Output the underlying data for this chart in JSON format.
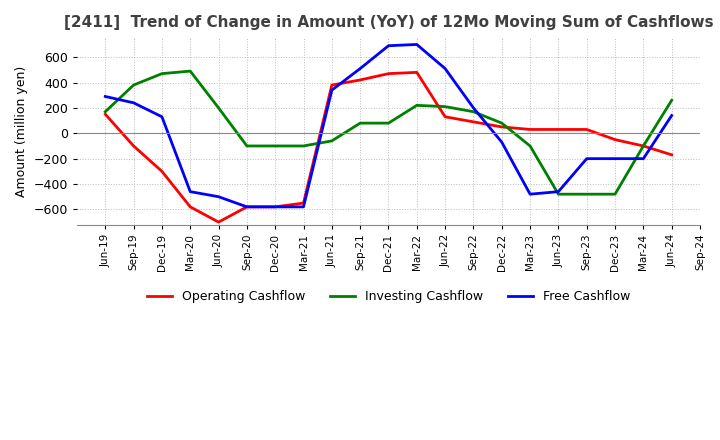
{
  "title": "[2411]  Trend of Change in Amount (YoY) of 12Mo Moving Sum of Cashflows",
  "ylabel": "Amount (million yen)",
  "ylim": [
    -720,
    750
  ],
  "yticks": [
    -600,
    -400,
    -200,
    0,
    200,
    400,
    600
  ],
  "background_color": "#ffffff",
  "grid_color": "#bbbbbb",
  "x_labels": [
    "Jun-19",
    "Sep-19",
    "Dec-19",
    "Mar-20",
    "Jun-20",
    "Sep-20",
    "Dec-20",
    "Mar-21",
    "Jun-21",
    "Sep-21",
    "Dec-21",
    "Mar-22",
    "Jun-22",
    "Sep-22",
    "Dec-22",
    "Mar-23",
    "Jun-23",
    "Sep-23",
    "Dec-23",
    "Mar-24",
    "Jun-24",
    "Sep-24"
  ],
  "operating": [
    150,
    -100,
    -300,
    -580,
    -700,
    -580,
    -580,
    -550,
    380,
    420,
    470,
    480,
    130,
    90,
    50,
    30,
    30,
    30,
    -50,
    -100,
    -170,
    null
  ],
  "investing": [
    170,
    380,
    470,
    490,
    200,
    -100,
    -100,
    -100,
    -60,
    80,
    80,
    220,
    210,
    170,
    80,
    -100,
    -480,
    -480,
    -480,
    -100,
    260,
    null
  ],
  "free": [
    290,
    240,
    130,
    -460,
    -500,
    -580,
    -580,
    -580,
    340,
    510,
    690,
    700,
    510,
    200,
    -70,
    -480,
    -460,
    -200,
    -200,
    -200,
    140,
    null
  ],
  "legend_labels": [
    "Operating Cashflow",
    "Investing Cashflow",
    "Free Cashflow"
  ],
  "line_colors": [
    "#ff0000",
    "#008000",
    "#0000ff"
  ],
  "title_color": "#404040",
  "title_fontsize": 11
}
